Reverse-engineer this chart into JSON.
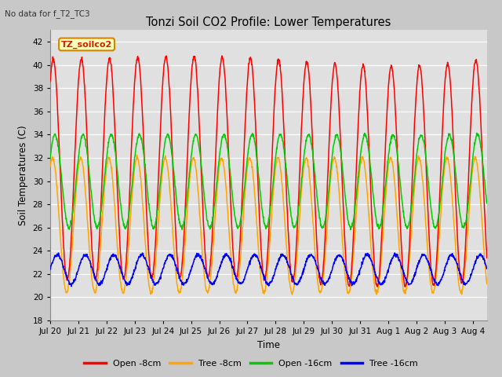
{
  "title": "Tonzi Soil CO2 Profile: Lower Temperatures",
  "subtitle": "No data for f_T2_TC3",
  "ylabel": "Soil Temperatures (C)",
  "xlabel": "Time",
  "ylim": [
    18,
    43
  ],
  "yticks": [
    18,
    20,
    22,
    24,
    26,
    28,
    30,
    32,
    34,
    36,
    38,
    40,
    42
  ],
  "legend_labels": [
    "Open -8cm",
    "Tree -8cm",
    "Open -16cm",
    "Tree -16cm"
  ],
  "legend_colors": [
    "#ff0000",
    "#ffa500",
    "#00cc00",
    "#0000ff"
  ],
  "inset_label": "TZ_soilco2",
  "inset_bg": "#ffffbb",
  "inset_border": "#cc8800",
  "fig_bg": "#c8c8c8",
  "plot_bg": "#e0e0e0",
  "n_days": 15.5,
  "points_per_day": 96,
  "tick_labels": [
    "Jul 20",
    "Jul 21",
    "Jul 22",
    "Jul 23",
    "Jul 24",
    "Jul 25",
    "Jul 26",
    "Jul 27",
    "Jul 28",
    "Jul 29",
    "Jul 30",
    "Jul 31",
    "Aug 1",
    "Aug 2",
    "Aug 3",
    "Aug 4"
  ],
  "open8_mean": 31.0,
  "open8_amp": 9.5,
  "tree8_mean": 26.2,
  "tree8_amp": 5.8,
  "open16_mean": 30.0,
  "open16_amp": 4.0,
  "tree16_mean": 22.4,
  "tree16_amp": 1.25
}
